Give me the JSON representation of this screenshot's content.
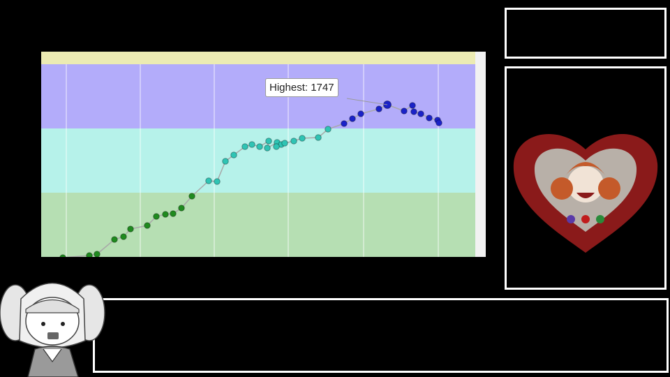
{
  "tooltip": {
    "label": "Highest: 1747"
  },
  "colors": {
    "band_top": "#b3acfa",
    "band_mid": "#b6f2ea",
    "band_low": "#b6dfb3",
    "top_strip": "#ecebb3",
    "point_green": "#1f8a1f",
    "point_cyan": "#2fc4b4",
    "point_blue": "#1a22c8",
    "line": "#a8a8a8"
  },
  "chart_data": {
    "type": "scatter",
    "title": "",
    "xlabel": "",
    "ylabel": "",
    "bands": [
      "purple",
      "cyan",
      "green"
    ],
    "highest": 1747,
    "series": [
      {
        "values": [
          [
            31,
            369
          ],
          [
            69,
            366
          ],
          [
            80,
            364
          ],
          [
            105,
            343
          ],
          [
            118,
            339
          ],
          [
            128,
            328
          ],
          [
            152,
            323
          ],
          [
            165,
            310
          ],
          [
            178,
            307
          ],
          [
            189,
            306
          ],
          [
            201,
            298
          ],
          [
            216,
            281
          ],
          [
            240,
            259
          ],
          [
            252,
            260
          ],
          [
            264,
            231
          ],
          [
            276,
            222
          ],
          [
            292,
            210
          ],
          [
            302,
            207
          ],
          [
            313,
            210
          ],
          [
            326,
            202
          ],
          [
            324,
            212
          ],
          [
            338,
            204
          ],
          [
            344,
            207
          ],
          [
            337,
            210
          ],
          [
            349,
            205
          ],
          [
            362,
            202
          ],
          [
            374,
            198
          ],
          [
            397,
            197
          ],
          [
            411,
            185
          ],
          [
            434,
            177
          ],
          [
            446,
            170
          ],
          [
            458,
            163
          ],
          [
            484,
            156
          ],
          [
            496,
            150
          ],
          [
            520,
            159
          ],
          [
            532,
            151
          ],
          [
            534,
            160
          ],
          [
            544,
            163
          ],
          [
            556,
            169
          ],
          [
            568,
            172
          ],
          [
            570,
            176
          ]
        ]
      }
    ]
  }
}
